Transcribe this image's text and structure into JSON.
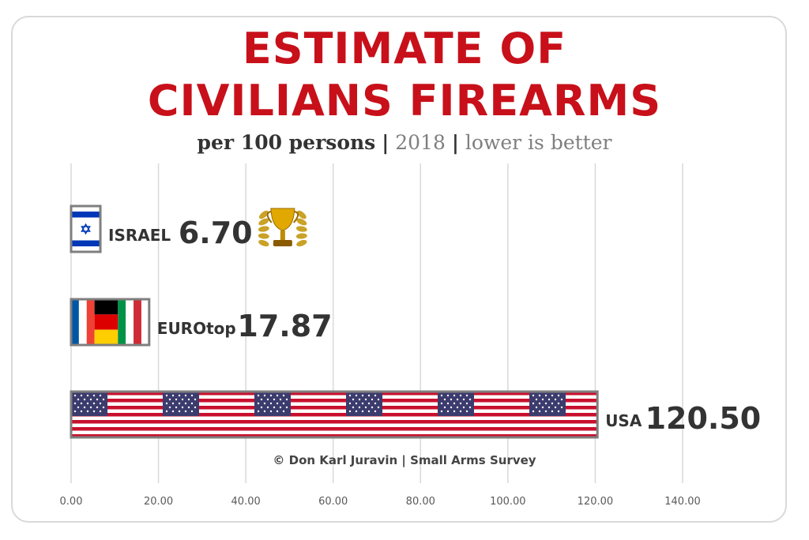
{
  "title_line1": "ESTIMATE OF",
  "title_line2": "CIVILIANS FIREARMS",
  "subtitle": {
    "part1": "per 100 persons",
    "sep": "|",
    "part2": "2018",
    "part3": "lower is better"
  },
  "source": "© Don Karl Juravin |  Small Arms Survey",
  "colors": {
    "title": "#c8101a",
    "label": "#333333",
    "gridline": "#d9d9d9",
    "bar_border": "#7f7f7f"
  },
  "chart_data": {
    "type": "bar",
    "orientation": "horizontal",
    "categories": [
      "ISRAEL",
      "EUROtop",
      "USA"
    ],
    "values": [
      6.7,
      17.87,
      120.5
    ],
    "value_labels": [
      "6.70",
      "17.87",
      "120.50"
    ],
    "bar_fill": [
      "israel-flag",
      "france-germany-italy-flags",
      "usa-flag"
    ],
    "xlim": [
      0,
      140
    ],
    "x_ticks": [
      0,
      20,
      40,
      60,
      80,
      100,
      120,
      140
    ],
    "x_tick_labels": [
      "0.00",
      "20.00",
      "40.00",
      "60.00",
      "80.00",
      "100.00",
      "120.00",
      "140.00"
    ],
    "grid": true,
    "annotation_icon": "trophy-icon"
  }
}
